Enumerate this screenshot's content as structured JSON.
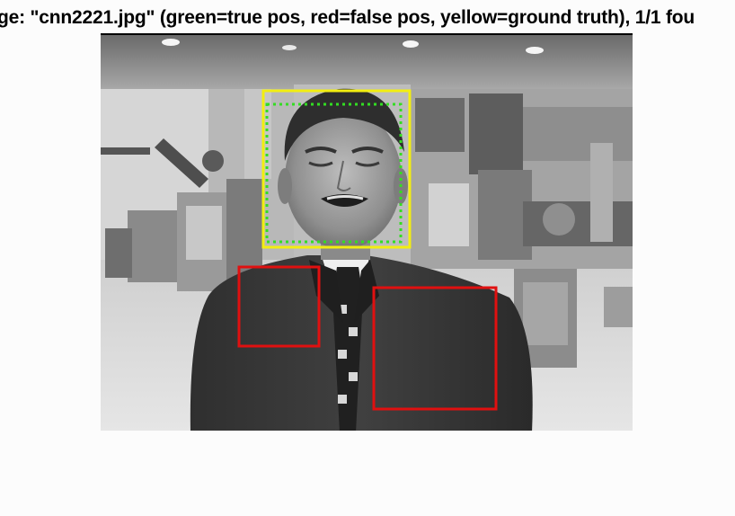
{
  "figure": {
    "title": "ge: \"cnn2221.jpg\" (green=true pos, red=false pos, yellow=ground truth), 1/1 fou"
  },
  "image": {
    "filename": "cnn2221.jpg",
    "subject": "news anchor in dark suit and patterned tie standing in a factory floor"
  },
  "legend": {
    "true_positive": "green",
    "false_positive": "red",
    "ground_truth": "yellow"
  },
  "colors": {
    "true_positive": "#33dd22",
    "false_positive": "#e01010",
    "ground_truth": "#f2ee10",
    "background": "#fcfcfc"
  },
  "detections": {
    "ground_truth_count": 1,
    "true_positive_count": 1,
    "false_positive_count": 2
  }
}
